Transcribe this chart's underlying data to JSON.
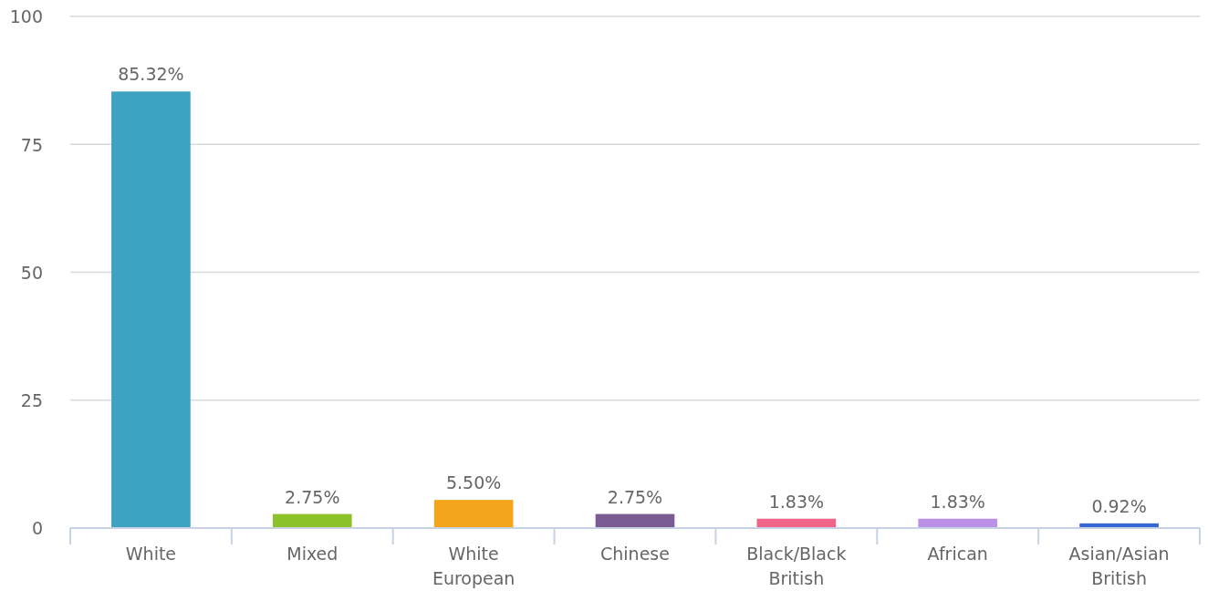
{
  "chart_data": {
    "type": "bar",
    "categories": [
      "White",
      "Mixed",
      "White European",
      "Chinese",
      "Black/Black British",
      "African",
      "Asian/Asian British"
    ],
    "values": [
      85.32,
      2.75,
      5.5,
      2.75,
      1.83,
      1.83,
      0.92
    ],
    "colors": [
      "#3ea3c3",
      "#8dc12a",
      "#f5a51b",
      "#7b5c92",
      "#ef6487",
      "#bb91e8",
      "#3468d6"
    ],
    "value_labels": [
      "85.32%",
      "2.75%",
      "5.50%",
      "2.75%",
      "1.83%",
      "1.83%",
      "0.92%"
    ],
    "ylim": [
      0,
      100
    ],
    "yticks": [
      0,
      25,
      50,
      75,
      100
    ],
    "grid": "y"
  }
}
